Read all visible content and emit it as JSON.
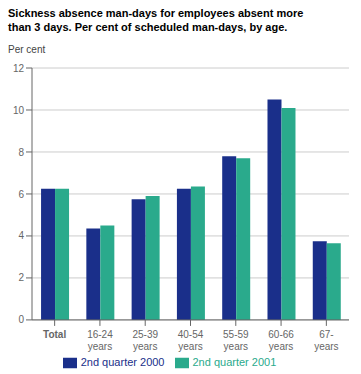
{
  "chart_data": {
    "type": "bar",
    "title": "Sickness absence man-days for employees absent more\nthan 3 days. Per cent of scheduled man-days, by age.",
    "y_label": "Per cent",
    "categories": [
      "Total",
      "16-24\nyears",
      "25-39\nyears",
      "40-54\nyears",
      "55-59\nyears",
      "60-66\nyears",
      "67-\nyears"
    ],
    "series": [
      {
        "name": "2nd quarter  2000",
        "color": "#1a2f8a",
        "values": [
          6.25,
          4.35,
          5.75,
          6.25,
          7.8,
          10.5,
          3.75
        ]
      },
      {
        "name": "2nd quarter 2001",
        "color": "#2aaa8c",
        "values": [
          6.25,
          4.5,
          5.9,
          6.35,
          7.7,
          10.1,
          3.65
        ]
      }
    ],
    "ylim": [
      0,
      12
    ],
    "yticks": [
      0,
      2,
      4,
      6,
      8,
      10,
      12
    ],
    "grid": true,
    "legend": "bottom"
  }
}
